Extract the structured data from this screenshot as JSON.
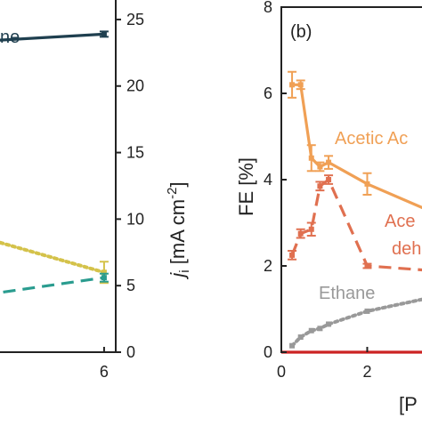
{
  "chart_data": [
    {
      "type": "line",
      "panel": "a",
      "xlim": [
        0,
        6.5
      ],
      "ylim": [
        0,
        27
      ],
      "x_ticks": [
        "6"
      ],
      "y2_ticks": [
        "0",
        "5",
        "10",
        "15",
        "20",
        "25"
      ],
      "y2label_main": "j",
      "y2label_sub": "i",
      "y2label_rest": " [mA cm",
      "y2label_sup": "-2",
      "y2label_close": "]",
      "grid": false,
      "series": [
        {
          "name": "ne",
          "color": "#1f3f4f",
          "dash": "solid",
          "x": [
            0,
            6
          ],
          "y": [
            23.3,
            23.9
          ],
          "yerr": [
            0,
            0.2
          ]
        },
        {
          "name": "",
          "color": "#d4c24a",
          "dash": "dotted",
          "x": [
            0,
            6
          ],
          "y": [
            9.0,
            6.0
          ],
          "yerr": [
            0,
            0.8
          ]
        },
        {
          "name": "",
          "color": "#2a9c8f",
          "dash": "dashed",
          "x": [
            0,
            6
          ],
          "y": [
            4.1,
            5.6
          ],
          "yerr": [
            0,
            0.3
          ]
        }
      ]
    },
    {
      "type": "line",
      "panel": "b",
      "panel_label": "(b)",
      "xlim": [
        0,
        3.4
      ],
      "ylim": [
        0,
        8
      ],
      "x_ticks": [
        "0",
        "2"
      ],
      "y_ticks": [
        "0",
        "2",
        "4",
        "6",
        "8"
      ],
      "ylabel": "FE [%]",
      "xlabel": "[P",
      "grid": false,
      "series": [
        {
          "name": "Acetic Ac",
          "color": "#f0a055",
          "dash": "solid",
          "x": [
            0.25,
            0.45,
            0.7,
            0.9,
            1.1,
            2.0,
            3.4
          ],
          "y": [
            6.2,
            6.2,
            4.5,
            4.3,
            4.4,
            3.9,
            3.3
          ],
          "yerr": [
            0.3,
            0.1,
            0.3,
            0.1,
            0.15,
            0.25,
            0
          ]
        },
        {
          "name": "Ace deh",
          "color": "#e07050",
          "dash": "dashed",
          "x": [
            0.25,
            0.45,
            0.7,
            0.9,
            1.1,
            2.0,
            3.4
          ],
          "y": [
            2.25,
            2.75,
            2.85,
            3.85,
            4.0,
            2.0,
            1.9
          ],
          "yerr": [
            0.1,
            0.1,
            0.15,
            0.1,
            0.1,
            0.05,
            0
          ]
        },
        {
          "name": "Ethane",
          "color": "#999999",
          "dash": "dotted",
          "x": [
            0.25,
            0.45,
            0.7,
            0.9,
            1.1,
            2.0,
            3.4
          ],
          "y": [
            0.15,
            0.35,
            0.5,
            0.55,
            0.65,
            0.95,
            1.25
          ],
          "yerr": [
            0,
            0,
            0,
            0,
            0,
            0,
            0
          ]
        },
        {
          "name": "",
          "color": "#cc2222",
          "dash": "solid",
          "x": [
            0,
            3.4
          ],
          "y": [
            0,
            0
          ],
          "yerr": [
            0,
            0
          ]
        }
      ]
    }
  ]
}
